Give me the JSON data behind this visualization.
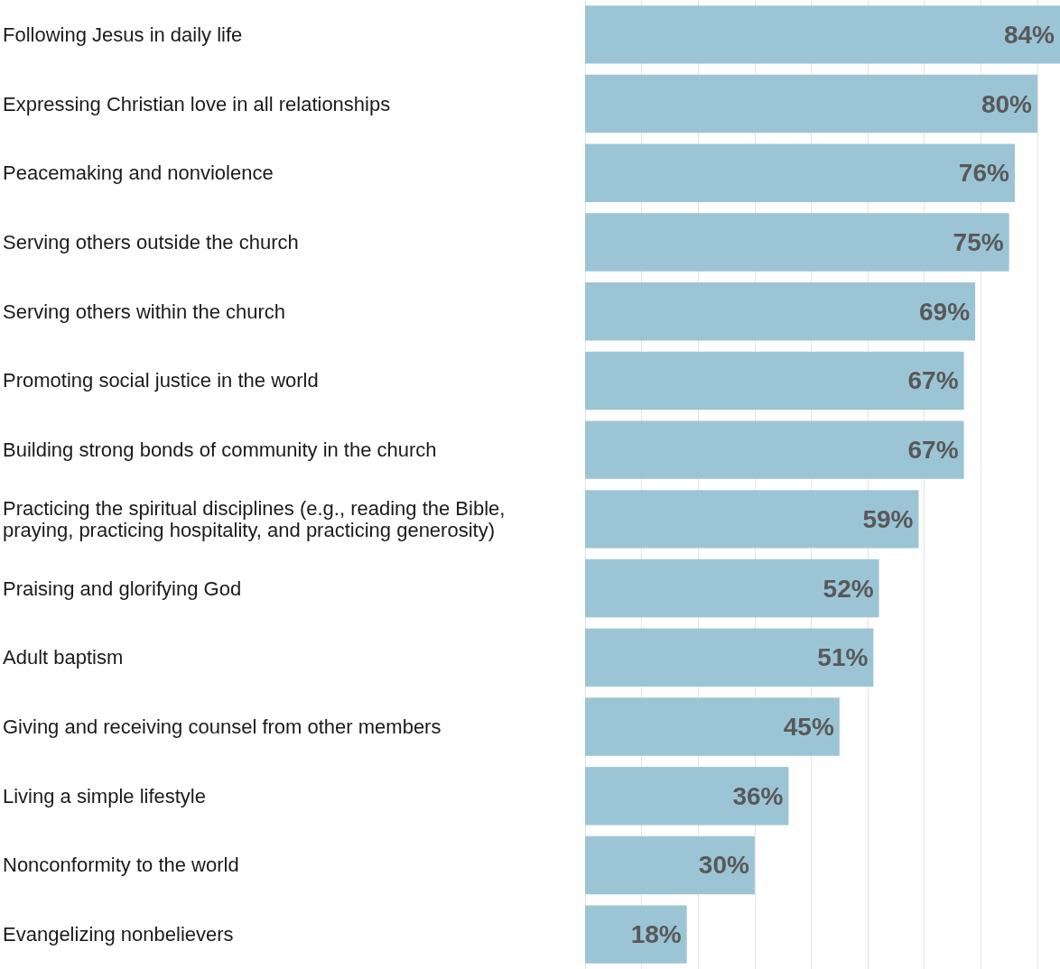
{
  "chart_data": {
    "type": "bar",
    "orientation": "horizontal",
    "categories": [
      "Following Jesus in daily life",
      "Expressing Christian love in all relationships",
      "Peacemaking and nonviolence",
      "Serving others outside the church",
      "Serving others within the church",
      "Promoting social justice in the world",
      "Building strong bonds of community in the church",
      "Practicing the spiritual disciplines (e.g., reading the Bible, praying, practicing hospitality, and practicing generosity)",
      "Praising and glorifying God",
      "Adult baptism",
      "Giving and receiving counsel from other members",
      "Living a simple lifestyle",
      "Nonconformity to the world",
      "Evangelizing nonbelievers"
    ],
    "values": [
      84,
      80,
      76,
      75,
      69,
      67,
      67,
      59,
      52,
      51,
      45,
      36,
      30,
      18
    ],
    "value_labels": [
      "84%",
      "80%",
      "76%",
      "75%",
      "69%",
      "67%",
      "67%",
      "59%",
      "52%",
      "51%",
      "45%",
      "36%",
      "30%",
      "18%"
    ],
    "color": "#9bc5d5",
    "xlim": [
      0,
      84
    ],
    "xticks": [
      {
        "value": 0,
        "label": null
      },
      {
        "value": 10,
        "label": null
      },
      {
        "value": 20,
        "label": null
      },
      {
        "value": 30,
        "label": null
      },
      {
        "value": 40,
        "label": null
      },
      {
        "value": 50,
        "label": null
      },
      {
        "value": 60,
        "label": null
      },
      {
        "value": 70,
        "label": null
      },
      {
        "value": 80,
        "label": null
      }
    ],
    "grid": "x",
    "tick_labels": "y"
  }
}
